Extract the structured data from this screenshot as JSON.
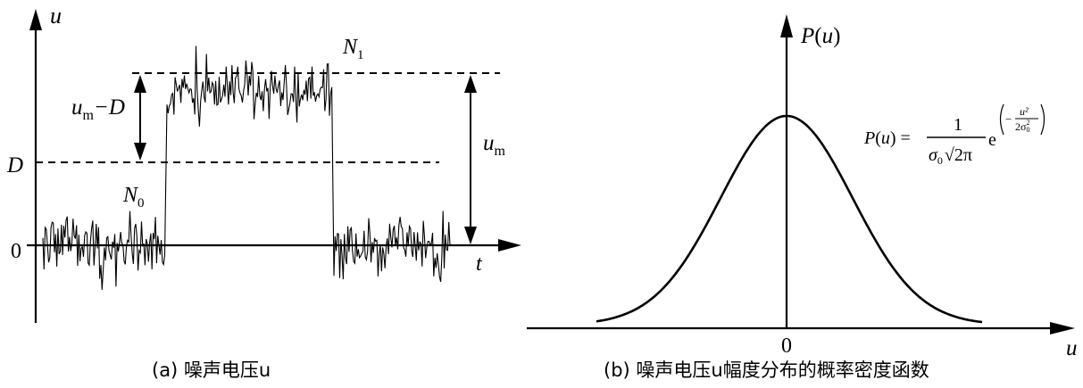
{
  "panel_a": {
    "caption": "(a) 噪声电压u",
    "y_axis_label": "u",
    "x_axis_label": "t",
    "origin_label": "0",
    "threshold_label": "D",
    "n1_label": "N",
    "n1_sub": "1",
    "n0_label": "N",
    "n0_sub": "0",
    "gap_label_main": "u",
    "gap_label_sub": "m",
    "gap_label_rest": "−D",
    "um_label_main": "u",
    "um_label_sub": "m"
  },
  "panel_b": {
    "caption": "(b) 噪声电压u幅度分布的概率密度函数",
    "y_axis_label": "P(u)",
    "x_axis_label": "u",
    "origin_label": "0",
    "formula_lhs": "P(u) =",
    "formula_num": "1",
    "formula_den_sigma": "σ",
    "formula_den_sub": "0",
    "formula_den_root": "√2π",
    "formula_exp_base": "e",
    "formula_exp_num": "u²",
    "formula_exp_den": "2σ",
    "formula_exp_den_sub": "0",
    "formula_exp_den_sup": "2",
    "formula_exp_minus": "−"
  },
  "colors": {
    "ink": "#000000",
    "background": "#ffffff"
  }
}
